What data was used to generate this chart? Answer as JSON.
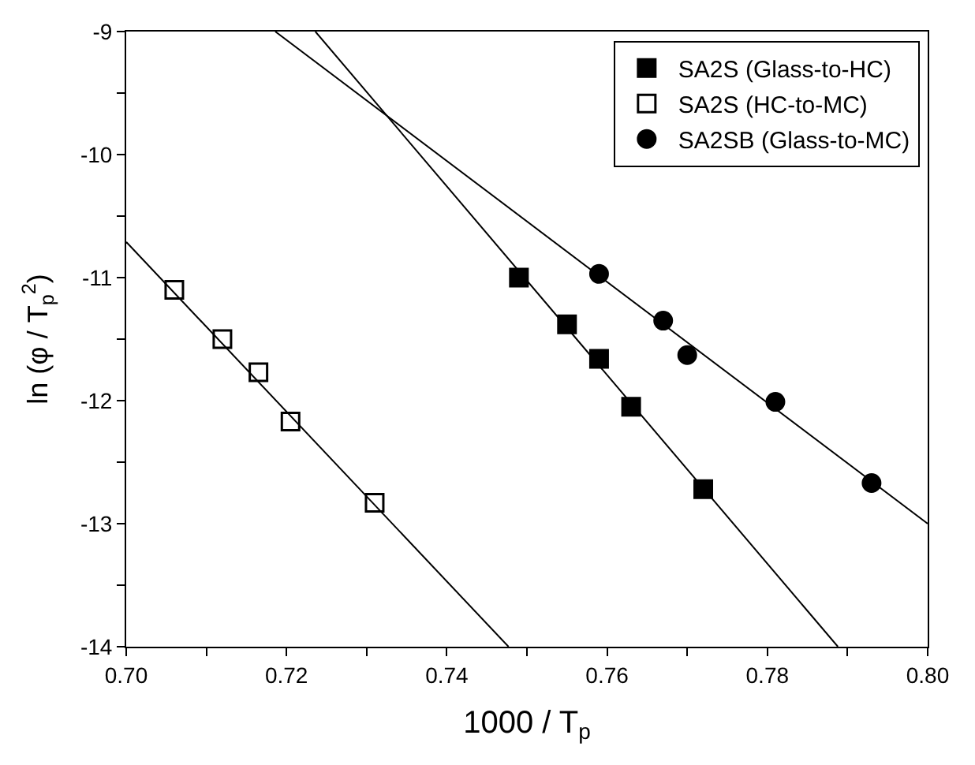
{
  "chart_data": {
    "type": "scatter",
    "xlabel": "1000 / T$_{p}$",
    "ylabel": "ln (φ / T$_{p}$$^{2}$)",
    "xlim": [
      0.7,
      0.8
    ],
    "ylim": [
      -14,
      -9
    ],
    "xticks": [
      {
        "value": 0.7,
        "label": "0.70"
      },
      {
        "value": 0.71,
        "label": null
      },
      {
        "value": 0.72,
        "label": "0.72"
      },
      {
        "value": 0.73,
        "label": null
      },
      {
        "value": 0.74,
        "label": "0.74"
      },
      {
        "value": 0.75,
        "label": null
      },
      {
        "value": 0.76,
        "label": "0.76"
      },
      {
        "value": 0.77,
        "label": null
      },
      {
        "value": 0.78,
        "label": "0.78"
      },
      {
        "value": 0.79,
        "label": null
      },
      {
        "value": 0.8,
        "label": "0.80"
      }
    ],
    "yticks": [
      -14,
      {
        "value": -13.5,
        "label": null
      },
      -13,
      {
        "value": -12.5,
        "label": null
      },
      -12,
      {
        "value": -11.5,
        "label": null
      },
      -11,
      {
        "value": -10.5,
        "label": null
      },
      -10,
      {
        "value": -9.5,
        "label": null
      },
      -9
    ],
    "legend": "top right",
    "series": [
      {
        "name": "SA2S (Glass-to-HC)",
        "color": "#000000",
        "marker": "square",
        "x": [
          0.749,
          0.755,
          0.759,
          0.763,
          0.772
        ],
        "values": [
          -11.0,
          -11.38,
          -11.66,
          -12.05,
          -12.72
        ]
      },
      {
        "name": "SA2S (HC-to-MC)",
        "color": "#000000",
        "marker": "square-open",
        "x": [
          0.706,
          0.712,
          0.7165,
          0.7205,
          0.731
        ],
        "values": [
          -11.1,
          -11.5,
          -11.77,
          -12.17,
          -12.83
        ]
      },
      {
        "name": "SA2SB (Glass-to-MC)",
        "color": "#000000",
        "marker": "circle",
        "x": [
          0.759,
          0.767,
          0.77,
          0.781,
          0.793
        ],
        "values": [
          -10.97,
          -11.35,
          -11.63,
          -12.01,
          -12.67
        ]
      },
      {
        "type": "line",
        "color": "#000000",
        "marker": "none",
        "x": [
          0.7236,
          0.7888
        ],
        "values": [
          -9,
          -14
        ]
      },
      {
        "type": "line",
        "color": "#000000",
        "marker": "none",
        "x": [
          0.7,
          0.7477
        ],
        "values": [
          -10.71,
          -14
        ]
      },
      {
        "type": "line",
        "color": "#000000",
        "marker": "none",
        "x": [
          0.7186,
          0.8
        ],
        "values": [
          -9,
          -13.0
        ]
      }
    ]
  }
}
